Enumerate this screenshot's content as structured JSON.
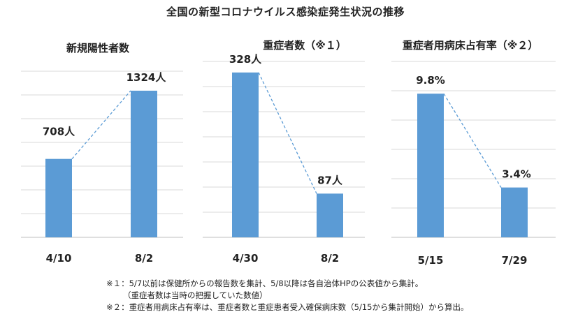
{
  "title": "全国の新型コロナウイルス感染症発生状況の推移",
  "colors": {
    "bar": "#5b9bd5",
    "connector": "#5b9bd5",
    "grid": "#d9d9d9"
  },
  "chart_data": [
    {
      "type": "bar",
      "title": "新規陽性者数",
      "categories": [
        "4/10",
        "8/2"
      ],
      "values": [
        708,
        1324
      ],
      "value_labels": [
        "708人",
        "1324人"
      ],
      "ylim": [
        0,
        1500
      ],
      "grid": true,
      "connector": "dashed"
    },
    {
      "type": "bar",
      "title": "重症者数（※１）",
      "categories": [
        "4/30",
        "8/2"
      ],
      "values": [
        328,
        87
      ],
      "value_labels": [
        "328人",
        "87人"
      ],
      "ylim": [
        0,
        350
      ],
      "grid": true,
      "connector": "dashed"
    },
    {
      "type": "bar",
      "title": "重症者用病床占有率（※２）",
      "categories": [
        "5/15",
        "7/29"
      ],
      "values": [
        9.8,
        3.4
      ],
      "value_labels": [
        "9.8%",
        "3.4%"
      ],
      "ylim": [
        0,
        12
      ],
      "grid": true,
      "connector": "dashed"
    }
  ],
  "notes": [
    "※１：5/7以前は保健所からの報告数を集計、5/8以降は各自治体HPの公表値から集計。",
    "（重症者数は当時の把握していた数値）",
    "※２：重症者用病床占有率は、重症者数と重症患者受入確保病床数（5/15から集計開始）から算出。"
  ]
}
